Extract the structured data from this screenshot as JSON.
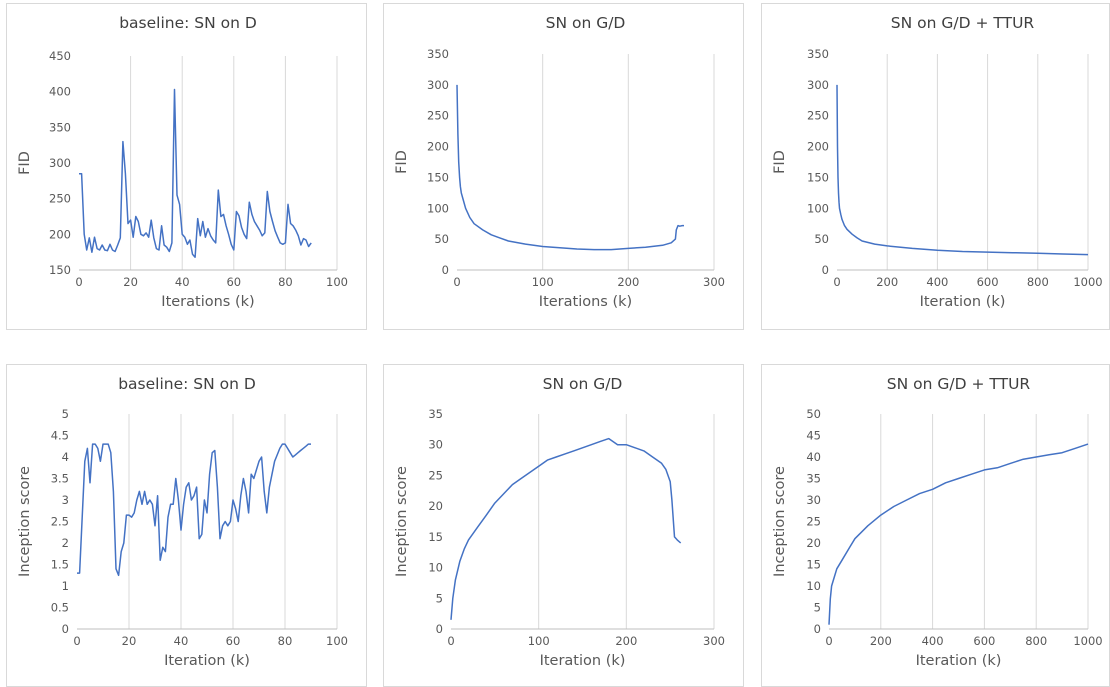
{
  "line_color": "#4472c4",
  "chart_data": [
    {
      "type": "line",
      "title": "baseline: SN on D",
      "xlabel": "Iterations (k)",
      "ylabel": "FID",
      "xlim": [
        0,
        100
      ],
      "ylim": [
        150,
        450
      ],
      "xticks": [
        0,
        20,
        40,
        60,
        80,
        100
      ],
      "yticks": [
        150,
        200,
        250,
        300,
        350,
        400,
        450
      ],
      "grid": "vertical",
      "series": [
        {
          "x": [
            0,
            1,
            2,
            3,
            4,
            5,
            6,
            7,
            8,
            9,
            10,
            11,
            12,
            13,
            14,
            15,
            16,
            17,
            18,
            19,
            20,
            21,
            22,
            23,
            24,
            25,
            26,
            27,
            28,
            29,
            30,
            31,
            32,
            33,
            34,
            35,
            36,
            37,
            38,
            39,
            40,
            41,
            42,
            43,
            44,
            45,
            46,
            47,
            48,
            49,
            50,
            51,
            52,
            53,
            54,
            55,
            56,
            57,
            58,
            59,
            60,
            61,
            62,
            63,
            64,
            65,
            66,
            67,
            68,
            69,
            70,
            71,
            72,
            73,
            74,
            75,
            76,
            77,
            78,
            79,
            80,
            81,
            82,
            83,
            84,
            85,
            86,
            87,
            88,
            89,
            90
          ],
          "y": [
            285,
            285,
            200,
            178,
            195,
            175,
            196,
            180,
            178,
            185,
            178,
            177,
            186,
            178,
            176,
            185,
            195,
            330,
            285,
            215,
            220,
            196,
            225,
            218,
            200,
            198,
            202,
            196,
            220,
            195,
            180,
            178,
            212,
            185,
            182,
            176,
            188,
            403,
            255,
            242,
            200,
            196,
            186,
            192,
            172,
            168,
            222,
            198,
            218,
            196,
            208,
            198,
            192,
            188,
            262,
            225,
            228,
            212,
            200,
            186,
            178,
            232,
            226,
            210,
            200,
            194,
            245,
            228,
            218,
            212,
            206,
            198,
            202,
            260,
            232,
            218,
            205,
            196,
            188,
            186,
            188,
            242,
            215,
            212,
            206,
            198,
            185,
            194,
            192,
            183,
            188
          ]
        }
      ]
    },
    {
      "type": "line",
      "title": "SN on G/D",
      "xlabel": "Iterations (k)",
      "ylabel": "FID",
      "xlim": [
        0,
        300
      ],
      "ylim": [
        0,
        350
      ],
      "xticks": [
        0,
        100,
        200,
        300
      ],
      "yticks": [
        0,
        50,
        100,
        150,
        200,
        250,
        300,
        350
      ],
      "grid": "vertical",
      "series": [
        {
          "x": [
            0,
            1,
            2,
            3,
            4,
            5,
            7,
            10,
            15,
            20,
            30,
            40,
            50,
            60,
            80,
            100,
            120,
            140,
            160,
            180,
            200,
            220,
            240,
            250,
            255,
            256,
            258,
            260,
            263,
            265
          ],
          "y": [
            300,
            220,
            175,
            150,
            135,
            125,
            115,
            100,
            85,
            75,
            65,
            57,
            52,
            47,
            42,
            38,
            36,
            34,
            33,
            33,
            35,
            37,
            40,
            44,
            50,
            65,
            72,
            71,
            72,
            72
          ]
        }
      ]
    },
    {
      "type": "line",
      "title": "SN on G/D + TTUR",
      "xlabel": "Iteration (k)",
      "ylabel": "FID",
      "xlim": [
        0,
        1000
      ],
      "ylim": [
        0,
        350
      ],
      "xticks": [
        0,
        200,
        400,
        600,
        800,
        1000
      ],
      "yticks": [
        0,
        50,
        100,
        150,
        200,
        250,
        300,
        350
      ],
      "grid": "vertical",
      "series": [
        {
          "x": [
            0,
            2,
            4,
            6,
            8,
            10,
            15,
            20,
            30,
            40,
            60,
            80,
            100,
            150,
            200,
            300,
            400,
            500,
            600,
            700,
            800,
            900,
            1000
          ],
          "y": [
            300,
            200,
            150,
            125,
            110,
            100,
            90,
            82,
            72,
            66,
            58,
            52,
            47,
            42,
            39,
            35,
            32,
            30,
            29,
            28,
            27,
            26,
            25
          ]
        }
      ]
    },
    {
      "type": "line",
      "title": "baseline: SN on D",
      "xlabel": "Iteration (k)",
      "ylabel": "Inception score",
      "xlim": [
        0,
        100
      ],
      "ylim": [
        0,
        5
      ],
      "xticks": [
        0,
        20,
        40,
        60,
        80,
        100
      ],
      "yticks": [
        0,
        0.5,
        1,
        1.5,
        2,
        2.5,
        3,
        3.5,
        4,
        4.5,
        5
      ],
      "ytick_labels": [
        "0",
        "0.5",
        "1",
        "1.5",
        "2",
        "2.5",
        "3",
        "3.5",
        "4",
        "4.5",
        "5"
      ],
      "grid": "vertical",
      "series": [
        {
          "x": [
            0,
            1,
            2,
            3,
            4,
            5,
            6,
            7,
            8,
            9,
            10,
            11,
            12,
            13,
            14,
            15,
            16,
            17,
            18,
            19,
            20,
            21,
            22,
            23,
            24,
            25,
            26,
            27,
            28,
            29,
            30,
            31,
            32,
            33,
            34,
            35,
            36,
            37,
            38,
            39,
            40,
            41,
            42,
            43,
            44,
            45,
            46,
            47,
            48,
            49,
            50,
            51,
            52,
            53,
            54,
            55,
            56,
            57,
            58,
            59,
            60,
            61,
            62,
            63,
            64,
            65,
            66,
            67,
            68,
            69,
            70,
            71,
            72,
            73,
            74,
            75,
            76,
            77,
            78,
            79,
            80,
            81,
            82,
            83,
            84,
            85,
            86,
            87,
            88,
            89,
            90
          ],
          "y": [
            1.3,
            1.3,
            2.6,
            3.9,
            4.2,
            3.4,
            4.3,
            4.3,
            4.2,
            3.9,
            4.3,
            4.3,
            4.3,
            4.1,
            3.2,
            1.4,
            1.25,
            1.8,
            2.0,
            2.65,
            2.65,
            2.6,
            2.7,
            3.0,
            3.2,
            2.9,
            3.2,
            2.9,
            3.0,
            2.9,
            2.4,
            3.1,
            1.6,
            1.9,
            1.8,
            2.6,
            2.9,
            2.9,
            3.5,
            3.0,
            2.3,
            2.9,
            3.3,
            3.4,
            3.0,
            3.1,
            3.3,
            2.1,
            2.2,
            3.0,
            2.7,
            3.6,
            4.1,
            4.15,
            3.3,
            2.1,
            2.4,
            2.5,
            2.4,
            2.5,
            3.0,
            2.8,
            2.5,
            3.1,
            3.5,
            3.2,
            2.7,
            3.6,
            3.5,
            3.7,
            3.9,
            4.0,
            3.2,
            2.7,
            3.3,
            3.6,
            3.9,
            4.05,
            4.2,
            4.3,
            4.3,
            4.2,
            4.1,
            4.0,
            4.05,
            4.1,
            4.15,
            4.2,
            4.25,
            4.3,
            4.3
          ]
        }
      ]
    },
    {
      "type": "line",
      "title": "SN on G/D",
      "xlabel": "Iteration (k)",
      "ylabel": "Inception score",
      "xlim": [
        0,
        300
      ],
      "ylim": [
        0,
        35
      ],
      "xticks": [
        0,
        100,
        200,
        300
      ],
      "yticks": [
        0,
        5,
        10,
        15,
        20,
        25,
        30,
        35
      ],
      "grid": "vertical",
      "series": [
        {
          "x": [
            0,
            2,
            5,
            10,
            15,
            20,
            30,
            40,
            50,
            60,
            70,
            80,
            90,
            100,
            110,
            120,
            130,
            140,
            150,
            160,
            170,
            180,
            190,
            200,
            210,
            220,
            230,
            240,
            245,
            250,
            252,
            255,
            258,
            262
          ],
          "y": [
            1.5,
            5,
            8,
            11,
            13,
            14.5,
            16.5,
            18.5,
            20.5,
            22,
            23.5,
            24.5,
            25.5,
            26.5,
            27.5,
            28,
            28.5,
            29,
            29.5,
            30,
            30.5,
            31,
            30,
            30,
            29.5,
            29,
            28,
            27,
            26,
            24,
            21,
            15,
            14.5,
            14
          ]
        }
      ]
    },
    {
      "type": "line",
      "title": "SN on G/D + TTUR",
      "xlabel": "Iteration (k)",
      "ylabel": "Inception score",
      "xlim": [
        0,
        1000
      ],
      "ylim": [
        0,
        50
      ],
      "xticks": [
        0,
        200,
        400,
        600,
        800,
        1000
      ],
      "yticks": [
        0,
        5,
        10,
        15,
        20,
        25,
        30,
        35,
        40,
        45,
        50
      ],
      "grid": "vertical",
      "series": [
        {
          "x": [
            0,
            5,
            10,
            20,
            30,
            50,
            80,
            100,
            150,
            200,
            250,
            300,
            350,
            400,
            450,
            500,
            550,
            600,
            650,
            700,
            750,
            800,
            850,
            900,
            950,
            1000
          ],
          "y": [
            1,
            7,
            10,
            12,
            14,
            16,
            19,
            21,
            24,
            26.5,
            28.5,
            30,
            31.5,
            32.5,
            34,
            35,
            36,
            37,
            37.5,
            38.5,
            39.5,
            40,
            40.5,
            41,
            42,
            43
          ]
        }
      ]
    }
  ]
}
